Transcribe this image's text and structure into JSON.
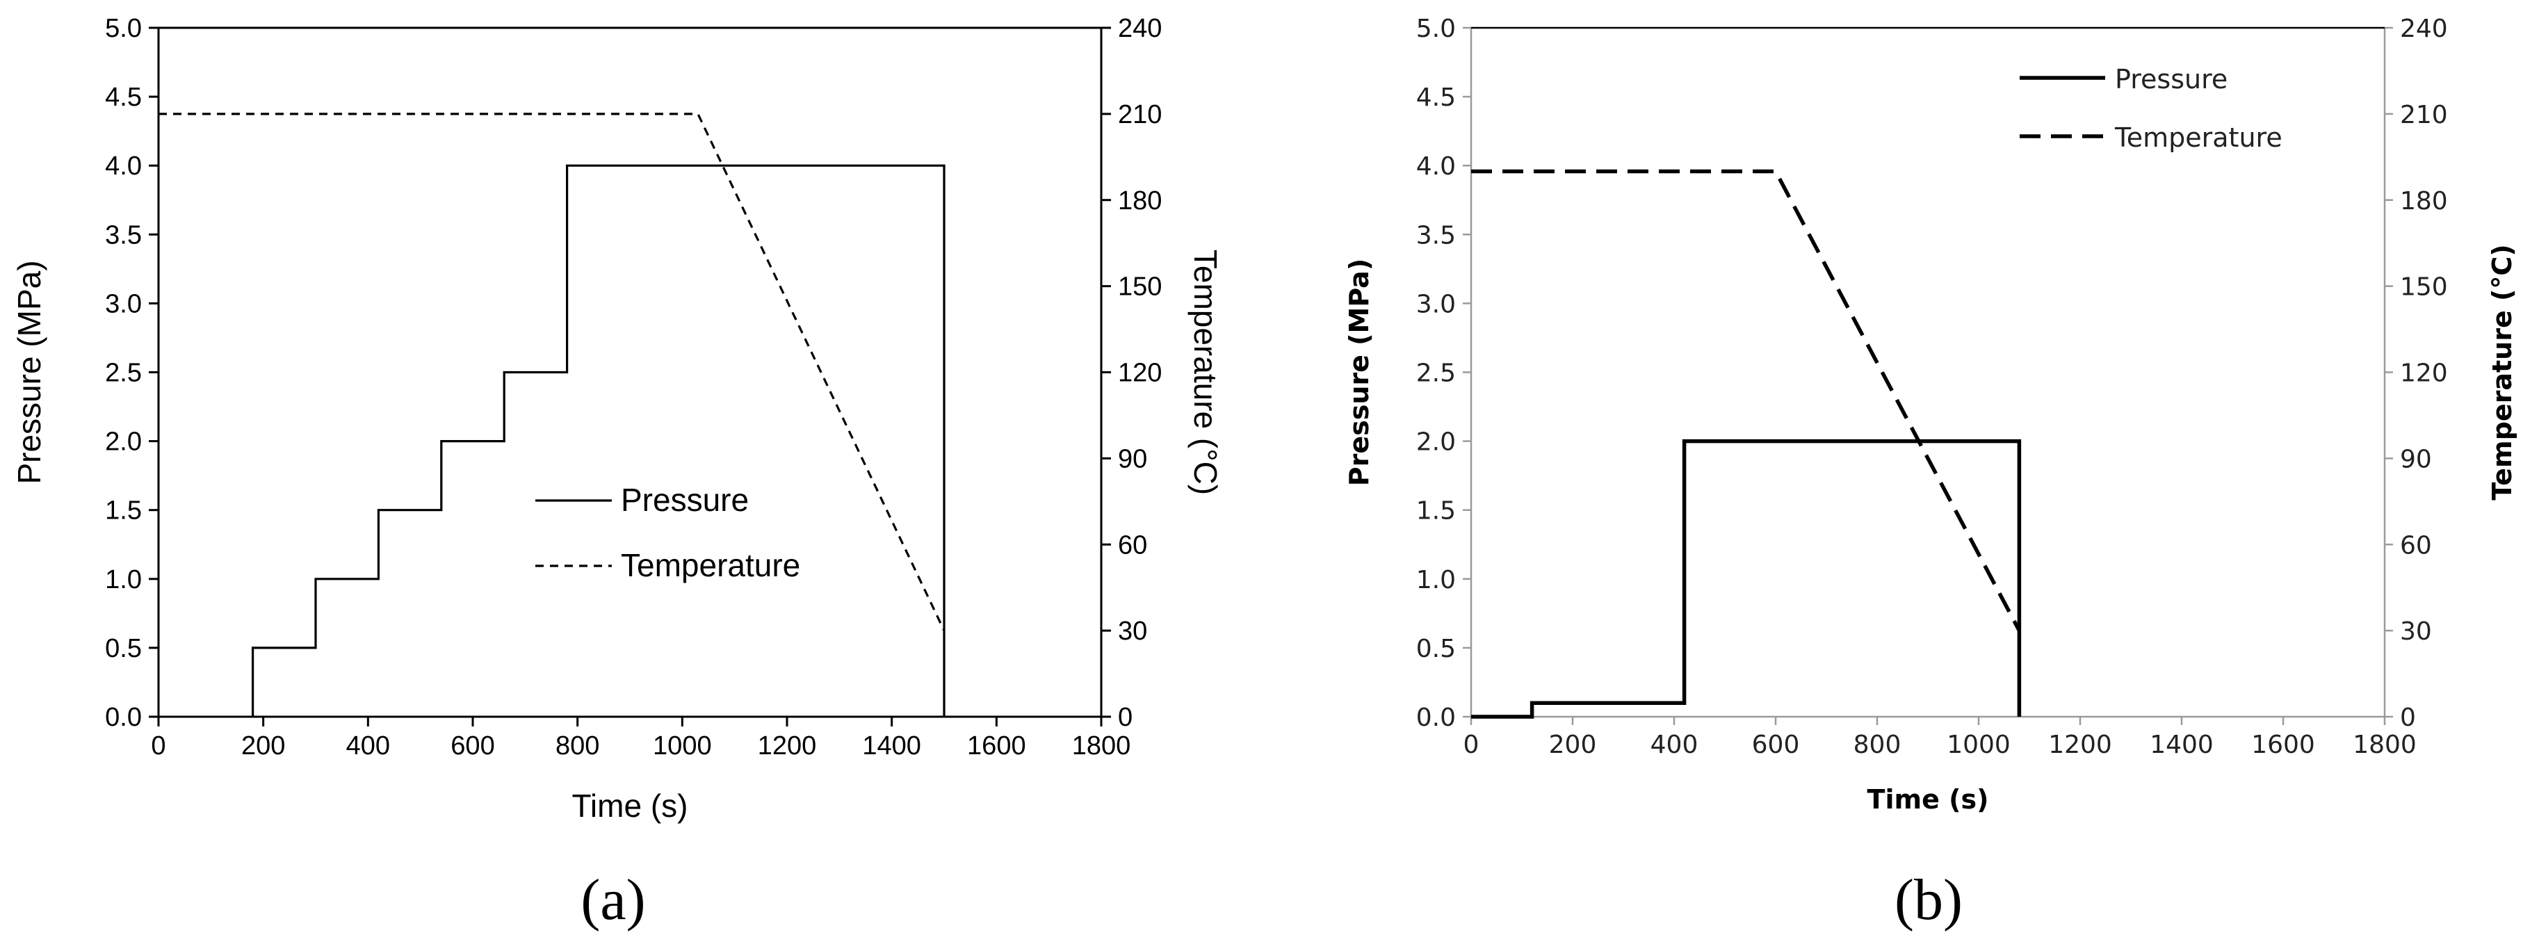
{
  "chart_data": [
    {
      "type": "line",
      "caption": "(a)",
      "xlabel": "Time (s)",
      "ylabel": "Pressure (MPa)",
      "y2label": "Temperature (°C)",
      "xlim": [
        0,
        1800
      ],
      "ylim": [
        0,
        5.0
      ],
      "y2lim": [
        0,
        240
      ],
      "xticks": [
        "0",
        "200",
        "400",
        "600",
        "800",
        "1000",
        "1200",
        "1400",
        "1600",
        "1800"
      ],
      "yticks": [
        "0.0",
        "0.5",
        "1.0",
        "1.5",
        "2.0",
        "2.5",
        "3.0",
        "3.5",
        "4.0",
        "4.5",
        "5.0"
      ],
      "y2ticks": [
        "0",
        "30",
        "60",
        "90",
        "120",
        "150",
        "180",
        "210",
        "240"
      ],
      "legend_position": "center-right",
      "grid": false,
      "series": [
        {
          "name": "Pressure",
          "axis": "left",
          "style": "solid",
          "color": "#000000",
          "points": [
            [
              180,
              0
            ],
            [
              180,
              0.5
            ],
            [
              300,
              0.5
            ],
            [
              300,
              1.0
            ],
            [
              420,
              1.0
            ],
            [
              420,
              1.5
            ],
            [
              540,
              1.5
            ],
            [
              540,
              2.0
            ],
            [
              660,
              2.0
            ],
            [
              660,
              2.5
            ],
            [
              780,
              2.5
            ],
            [
              780,
              4.0
            ],
            [
              1500,
              4.0
            ],
            [
              1500,
              0
            ]
          ]
        },
        {
          "name": "Temperature",
          "axis": "right",
          "style": "dashed",
          "color": "#000000",
          "points": [
            [
              0,
              210
            ],
            [
              1030,
              210
            ],
            [
              1500,
              30
            ]
          ]
        }
      ]
    },
    {
      "type": "line",
      "caption": "(b)",
      "xlabel": "Time (s)",
      "ylabel": "Pressure (MPa)",
      "y2label": "Temperature (°C)",
      "xlim": [
        0,
        1800
      ],
      "ylim": [
        0,
        5.0
      ],
      "y2lim": [
        0,
        240
      ],
      "xticks": [
        "0",
        "200",
        "400",
        "600",
        "800",
        "1000",
        "1200",
        "1400",
        "1600",
        "1800"
      ],
      "yticks": [
        "0.0",
        "0.5",
        "1.0",
        "1.5",
        "2.0",
        "2.5",
        "3.0",
        "3.5",
        "4.0",
        "4.5",
        "5.0"
      ],
      "y2ticks": [
        "0",
        "30",
        "60",
        "90",
        "120",
        "150",
        "180",
        "210",
        "240"
      ],
      "legend_position": "top-center",
      "grid": false,
      "series": [
        {
          "name": "Pressure",
          "axis": "left",
          "style": "solid",
          "color": "#000000",
          "points": [
            [
              0,
              0
            ],
            [
              120,
              0
            ],
            [
              120,
              0.1
            ],
            [
              420,
              0.1
            ],
            [
              420,
              2.0
            ],
            [
              1080,
              2.0
            ],
            [
              1080,
              0
            ]
          ]
        },
        {
          "name": "Temperature",
          "axis": "right",
          "style": "dashed",
          "color": "#000000",
          "points": [
            [
              0,
              190
            ],
            [
              600,
              190
            ],
            [
              1080,
              30
            ]
          ]
        }
      ]
    }
  ]
}
